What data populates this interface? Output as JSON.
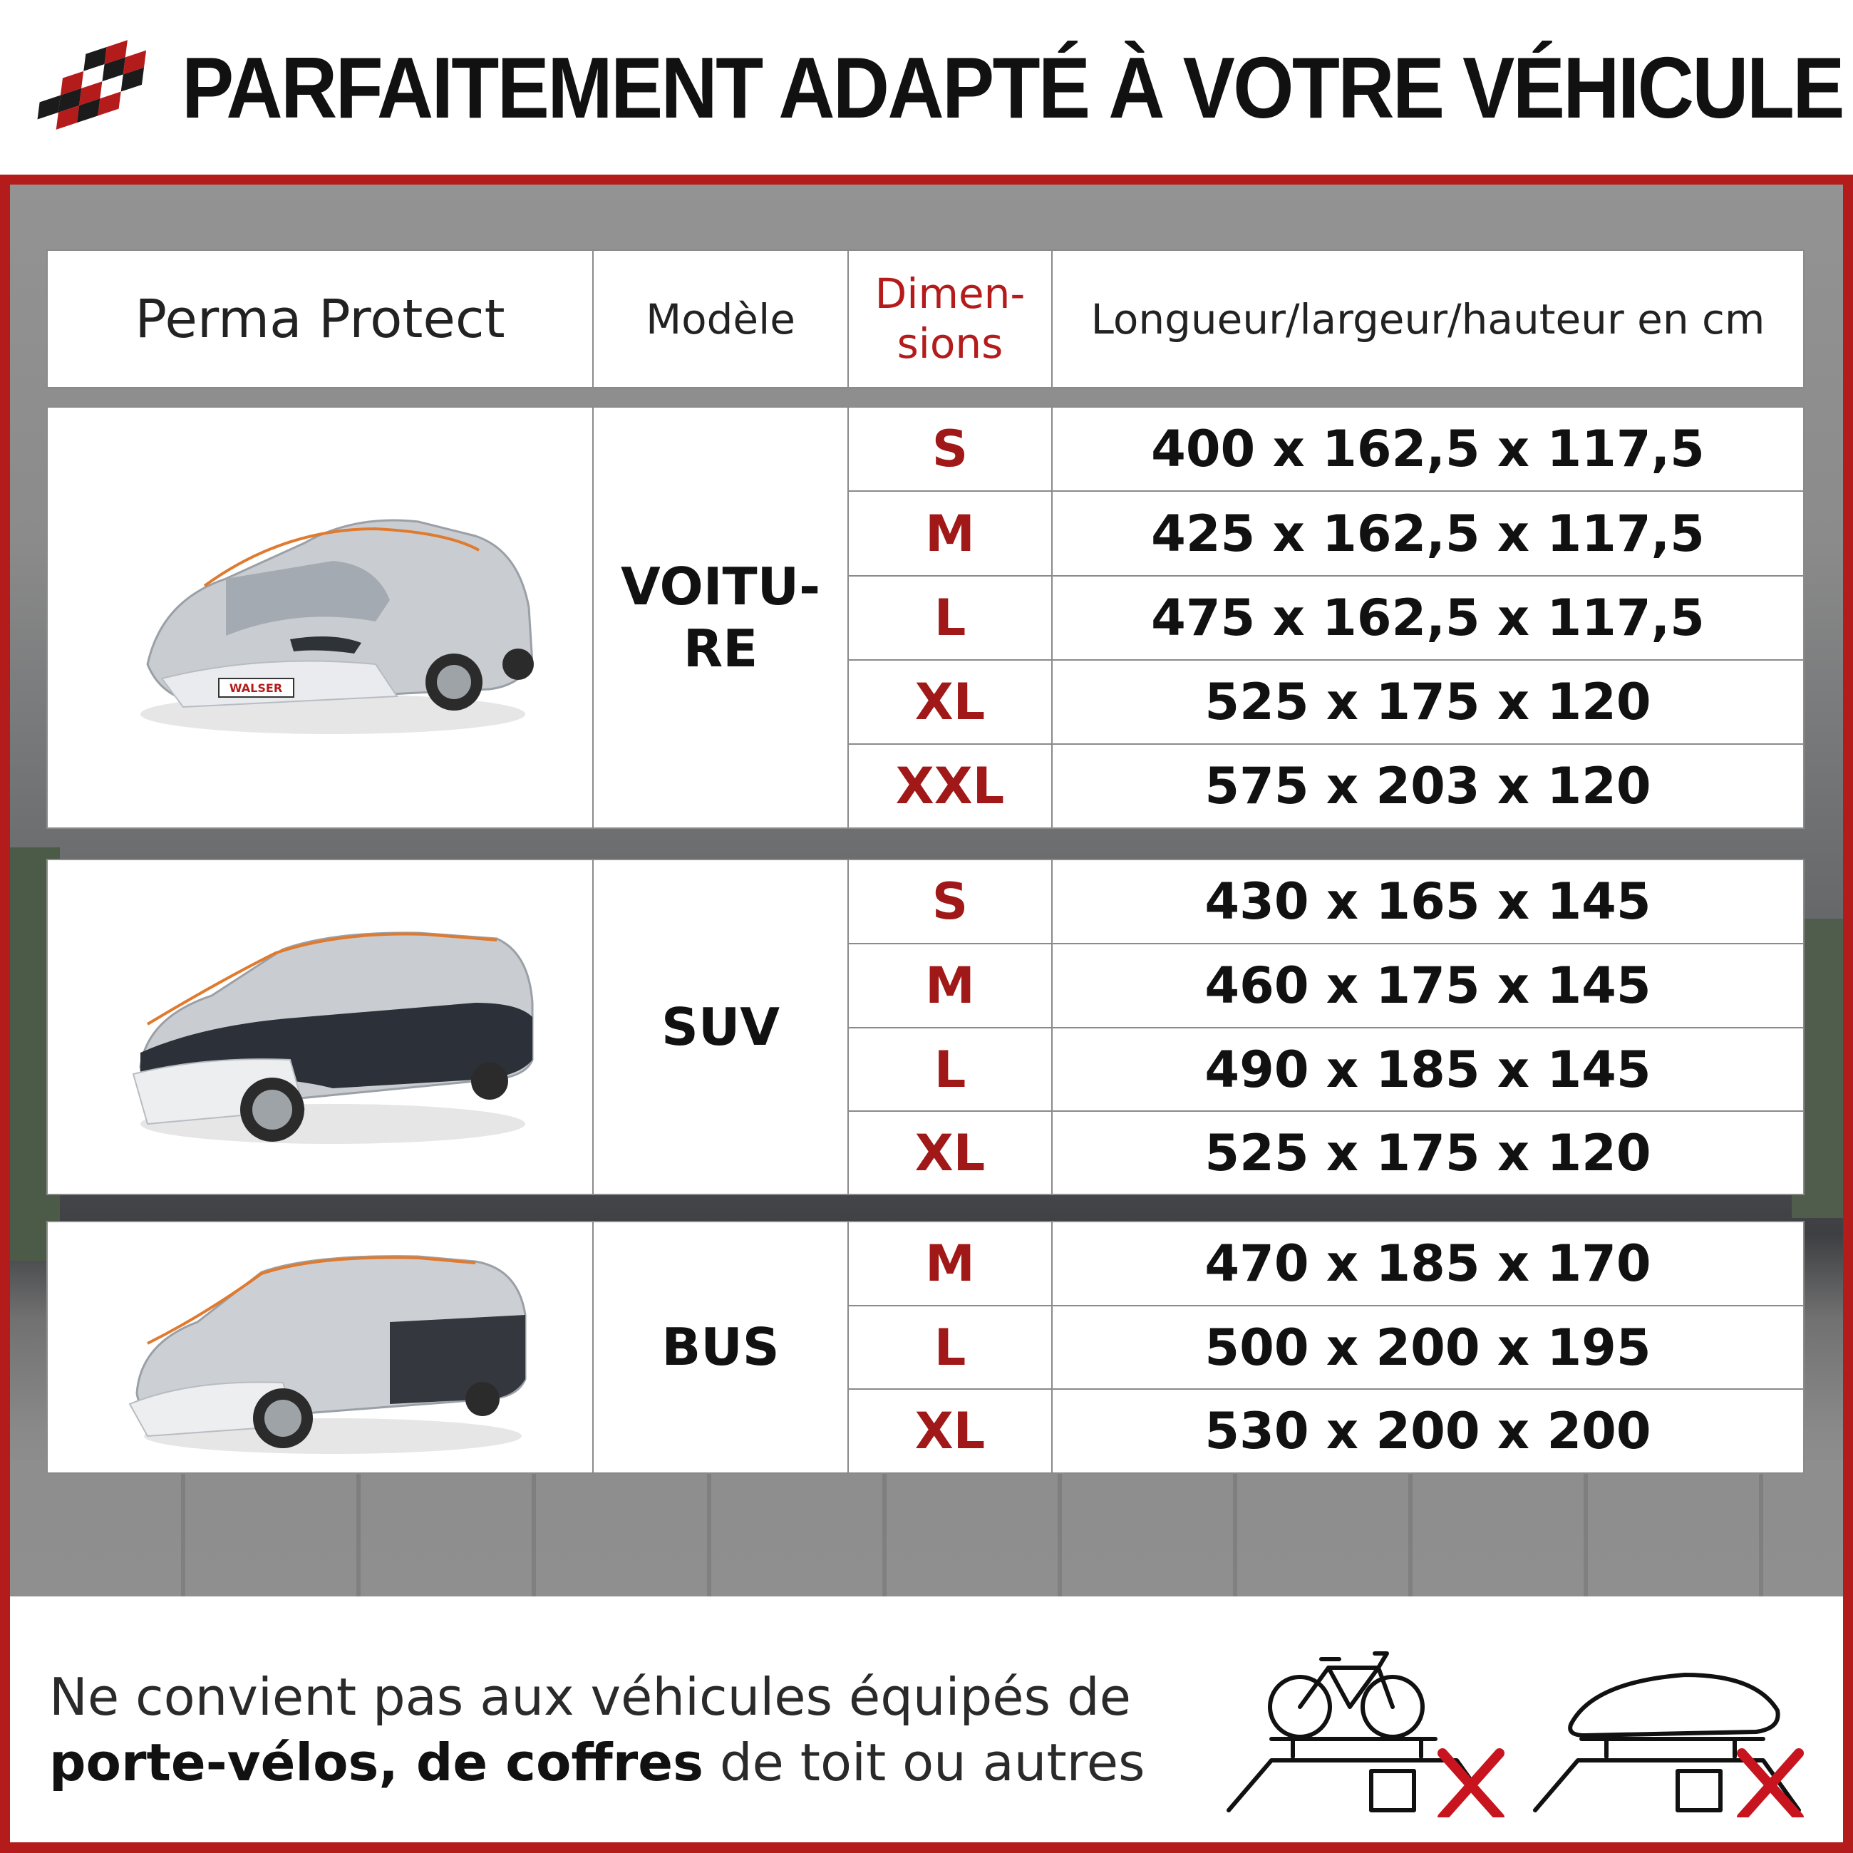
{
  "header": {
    "title": "PARFAITEMENT ADAPTÉ À VOTRE VÉHICULE"
  },
  "colors": {
    "accent": "#b41c1c",
    "text": "#111111"
  },
  "table": {
    "headers": {
      "product": "Perma Protect",
      "model": "Modèle",
      "sizes_line1": "Dimen-",
      "sizes_line2": "sions",
      "dimensions": "Longueur/largeur/hauteur en cm"
    },
    "groups": [
      {
        "model_line1": "VOITU-",
        "model_line2": "RE",
        "image": "car-cover-hatchback",
        "plate_text": "WALSER",
        "rows": [
          {
            "size": "S",
            "dims": "400 x 162,5 x 117,5"
          },
          {
            "size": "M",
            "dims": "425 x 162,5 x 117,5"
          },
          {
            "size": "L",
            "dims": "475 x 162,5 x 117,5"
          },
          {
            "size": "XL",
            "dims": "525 x 175 x 120"
          },
          {
            "size": "XXL",
            "dims": "575 x 203 x 120"
          }
        ]
      },
      {
        "model": "SUV",
        "image": "car-cover-suv",
        "rows": [
          {
            "size": "S",
            "dims": "430 x 165 x 145"
          },
          {
            "size": "M",
            "dims": "460 x 175 x 145"
          },
          {
            "size": "L",
            "dims": "490 x 185 x 145"
          },
          {
            "size": "XL",
            "dims": "525 x 175 x 120"
          }
        ]
      },
      {
        "model": "BUS",
        "image": "car-cover-van",
        "rows": [
          {
            "size": "M",
            "dims": "470 x 185 x 170"
          },
          {
            "size": "L",
            "dims": "500 x 200 x 195"
          },
          {
            "size": "XL",
            "dims": "530 x 200 x 200"
          }
        ]
      }
    ]
  },
  "footer": {
    "note_line1": "Ne convient pas aux véhicules équipés de",
    "note_bold": "porte-vélos, de coffres",
    "note_rest": " de toit ou autres",
    "icons": [
      "bike-rack-crossed-icon",
      "roof-box-crossed-icon"
    ]
  }
}
